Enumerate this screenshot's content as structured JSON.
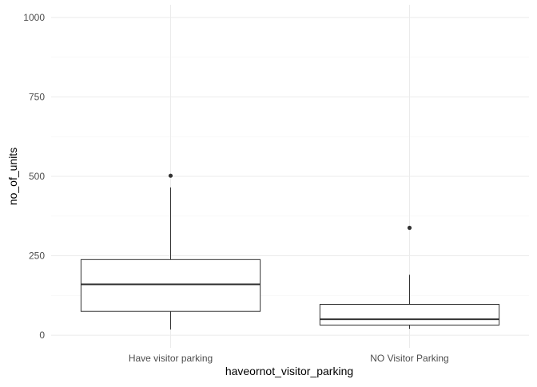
{
  "chart_data": {
    "type": "boxplot",
    "title": "",
    "xlabel": "haveornot_visitor_parking",
    "ylabel": "no_of_units",
    "categories": [
      "Have visitor parking",
      "NO Visitor Parking"
    ],
    "ylim": [
      -40,
      1040
    ],
    "yticks": [
      0,
      250,
      500,
      750,
      1000
    ],
    "grid": true,
    "legend": "none",
    "boxes": [
      {
        "category": "Have visitor parking",
        "whisker_low": 18,
        "q1": 75,
        "median": 160,
        "q3": 238,
        "whisker_high": 465,
        "outliers": [
          502
        ]
      },
      {
        "category": "NO Visitor Parking",
        "whisker_low": 20,
        "q1": 32,
        "median": 50,
        "q3": 97,
        "whisker_high": 190,
        "outliers": [
          338
        ]
      }
    ],
    "colors": {
      "background": "#ffffff",
      "grid_major": "#ebebeb",
      "grid_minor": "#f5f5f5",
      "box_stroke": "#333333",
      "outlier": "#333333",
      "tick_text": "#4d4d4d",
      "axis_title": "#000000"
    }
  }
}
